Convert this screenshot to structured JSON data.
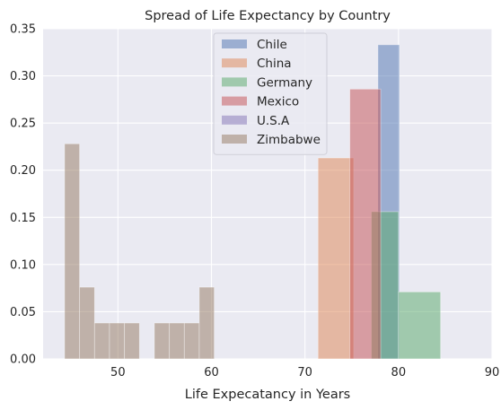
{
  "chart_data": {
    "type": "histogram",
    "title": "Spread of Life Expectancy by Country",
    "xlabel": "Life Expecatancy in Years",
    "ylabel": "",
    "xlim": [
      42,
      90
    ],
    "ylim": [
      0,
      0.35
    ],
    "xticks": [
      50,
      60,
      70,
      80,
      90
    ],
    "yticks": [
      0.0,
      0.05,
      0.1,
      0.15,
      0.2,
      0.25,
      0.3,
      0.35
    ],
    "xtick_labels": [
      "50",
      "60",
      "70",
      "80",
      "90"
    ],
    "ytick_labels": [
      "0.00",
      "0.05",
      "0.10",
      "0.15",
      "0.20",
      "0.25",
      "0.30",
      "0.35"
    ],
    "grid": true,
    "legend_position": "upper center",
    "series": [
      {
        "name": "Chile",
        "color": "#4C72B0",
        "bins": [
          [
            77.8,
            80.1,
            0.333
          ]
        ]
      },
      {
        "name": "China",
        "color": "#DD8452",
        "bins": [
          [
            71.4,
            75.2,
            0.213
          ]
        ]
      },
      {
        "name": "Germany",
        "color": "#55A868",
        "bins": [
          [
            77.1,
            80.0,
            0.156
          ],
          [
            80.0,
            84.5,
            0.071
          ]
        ]
      },
      {
        "name": "Mexico",
        "color": "#C44E52",
        "bins": [
          [
            74.8,
            78.1,
            0.286
          ]
        ]
      },
      {
        "name": "U.S.A",
        "color": "#8172B3",
        "bins": [
          [
            76.3,
            79.9,
            0.0
          ]
        ]
      },
      {
        "name": "Zimbabwe",
        "color": "#937860",
        "bins": [
          [
            44.3,
            45.9,
            0.228
          ],
          [
            45.9,
            47.5,
            0.076
          ],
          [
            47.5,
            49.1,
            0.038
          ],
          [
            49.1,
            50.7,
            0.038
          ],
          [
            50.7,
            52.3,
            0.038
          ],
          [
            52.3,
            53.9,
            0.0
          ],
          [
            53.9,
            55.5,
            0.038
          ],
          [
            55.5,
            57.1,
            0.038
          ],
          [
            57.1,
            58.7,
            0.038
          ],
          [
            58.7,
            60.3,
            0.076
          ],
          [
            75.1,
            76.7,
            0.0
          ],
          [
            76.7,
            78.3,
            0.0
          ],
          [
            78.3,
            79.9,
            0.0
          ]
        ]
      }
    ]
  }
}
